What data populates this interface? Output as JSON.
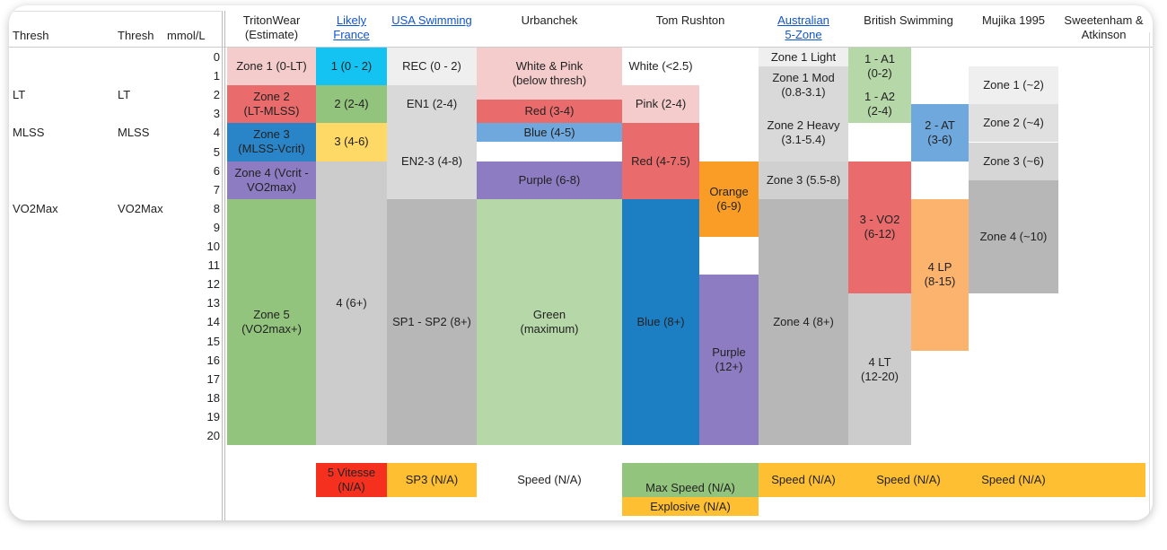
{
  "header": {
    "thresh_left": "Thresh",
    "thresh_right": "Thresh",
    "unit": "mmol/L"
  },
  "levels": [
    0,
    1,
    2,
    3,
    4,
    5,
    6,
    7,
    8,
    9,
    10,
    11,
    12,
    13,
    14,
    15,
    16,
    17,
    18,
    19,
    20
  ],
  "thresholds": [
    [
      "LT",
      "LT"
    ],
    [
      "MLSS",
      "MLSS"
    ],
    [
      "VO2Max",
      "VO2Max"
    ]
  ],
  "columns": [
    {
      "title": [
        "TritonWear",
        "(Estimate)"
      ],
      "cells": [
        [
          "Zone 1 (0-LT)"
        ],
        [
          "Zone 2",
          "(LT-MLSS)"
        ],
        [
          "Zone 3",
          "(MLSS-Vcrit)"
        ],
        [
          "Zone 4 (Vcrit -",
          "VO2max)"
        ],
        [
          "Zone 5",
          "(VO2max+)"
        ]
      ]
    },
    {
      "title": [
        "Likely",
        "France"
      ],
      "cells": [
        [
          "1 (0 - 2)"
        ],
        [
          "2 (2-4)"
        ],
        [
          "3 (4-6)"
        ],
        [
          "4 (6+)"
        ],
        [
          "5 Vitesse",
          "(N/A)"
        ]
      ]
    },
    {
      "title": [
        "USA Swimming"
      ],
      "cells": [
        [
          "REC (0 - 2)"
        ],
        [
          "EN1 (2-4)"
        ],
        [
          "EN2-3 (4-8)"
        ],
        [
          "SP1 - SP2 (8+)"
        ],
        [
          "SP3 (N/A)"
        ]
      ]
    },
    {
      "title": [
        "Urbanchek"
      ],
      "cells": [
        [
          "White & Pink",
          "(below thresh)"
        ],
        [
          "Red (3-4)"
        ],
        [
          "Blue (4-5)"
        ],
        [
          "Purple (6-8)"
        ],
        [
          "Green",
          "(maximum)"
        ],
        [
          "Speed (N/A)"
        ]
      ]
    },
    {
      "title": [
        "Tom Rushton"
      ],
      "cells": [
        [
          "White (<2.5)"
        ],
        [
          "Pink (2-4)"
        ],
        [
          "Red (4-7.5)"
        ],
        [
          "Blue (8+)"
        ],
        [
          "Orange",
          "(6-9)"
        ],
        [
          "Purple",
          "(12+)"
        ],
        [
          "Max Speed (N/A)"
        ],
        [
          "Explosive (N/A)"
        ]
      ]
    },
    {
      "title": [
        "Australian",
        "5-Zone"
      ],
      "cells": [
        [
          "Zone 1 Light"
        ],
        [
          "Zone 1 Mod",
          "(0.8-3.1)"
        ],
        [
          "Zone 2 Heavy",
          "(3.1-5.4)"
        ],
        [
          "Zone 3 (5.5-8)"
        ],
        [
          "Zone 4 (8+)"
        ],
        [
          "Speed (N/A)"
        ]
      ]
    },
    {
      "title": [
        "British Swimming"
      ],
      "cells": [
        [
          "1 - A1",
          "(0-2)"
        ],
        [
          "1 - A2",
          "(2-4)"
        ],
        [
          "2 - AT",
          "(3-6)"
        ],
        [
          "3 - VO2",
          "(6-12)"
        ],
        [
          "4 LP",
          "(8-15)"
        ],
        [
          "4 LT",
          "(12-20)"
        ],
        [
          "Speed (N/A)"
        ]
      ]
    },
    {
      "title": [
        "Mujika 1995"
      ],
      "cells": [
        [
          "Zone 1 (~2)"
        ],
        [
          "Zone 2 (~4)"
        ],
        [
          "Zone 3 (~6)"
        ],
        [
          "Zone 4 (~10)"
        ],
        [
          "Speed (N/A)"
        ]
      ]
    },
    {
      "title": [
        "Sweetenham &",
        "Atkinson"
      ],
      "cells": [
        []
      ]
    }
  ]
}
